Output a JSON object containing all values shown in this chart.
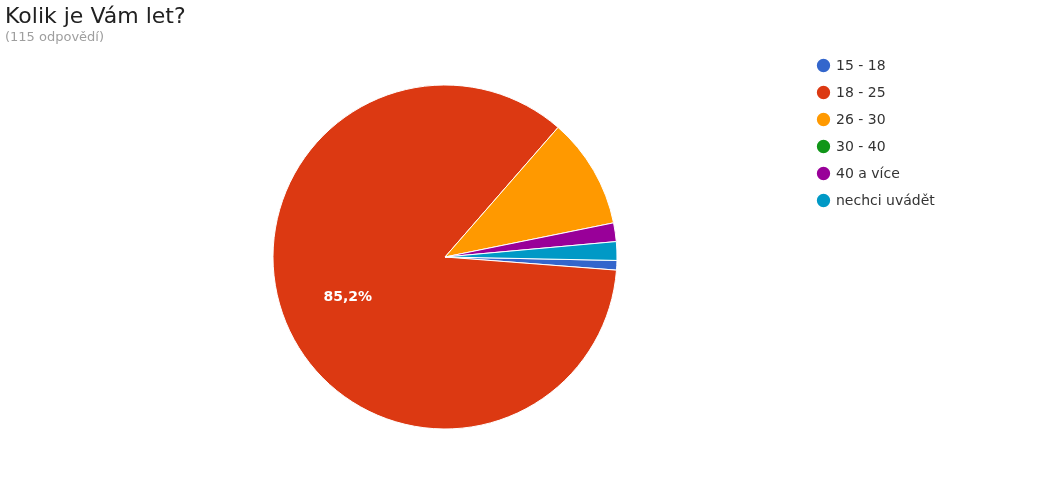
{
  "chart_data": {
    "type": "pie",
    "title": "Kolik je Vám let?",
    "subtitle": "(115 odpovědí)",
    "categories": [
      "15 - 18",
      "18 - 25",
      "26 - 30",
      "30 - 40",
      "40 a více",
      "nechci uvádět"
    ],
    "values": [
      0.9,
      85.2,
      10.4,
      0,
      1.75,
      1.75
    ],
    "colors": [
      "#3366cc",
      "#dc3912",
      "#ff9900",
      "#109618",
      "#990099",
      "#0099c6"
    ],
    "value_labels": [
      null,
      "85,2%",
      null,
      null,
      null,
      null
    ],
    "legend": "right"
  }
}
